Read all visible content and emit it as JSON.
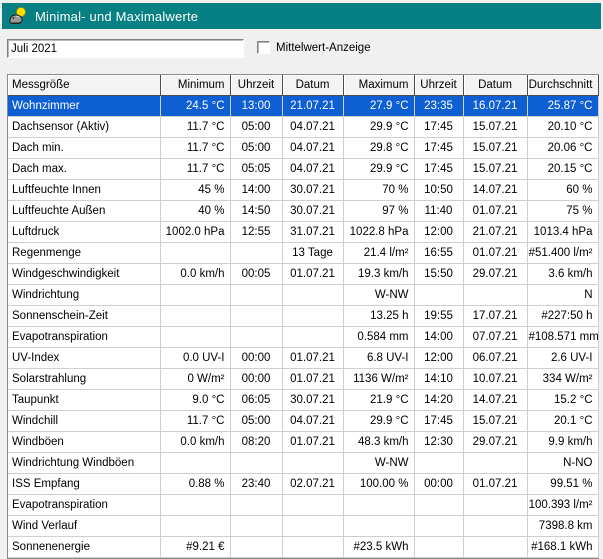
{
  "window": {
    "title": "Minimal- und Maximalwerte",
    "icon": "weather-station-sun-icon"
  },
  "controls": {
    "period_value": "Juli 2021",
    "mittelwert_checkbox_label": "Mittelwert-Anzeige",
    "mittelwert_checkbox_checked": false
  },
  "table": {
    "columns": [
      "Messgröße",
      "Minimum",
      "Uhrzeit",
      "Datum",
      "Maximum",
      "Uhrzeit",
      "Datum",
      "Durchschnitt"
    ],
    "selected_row_index": 0,
    "rows": [
      [
        "Wohnzimmer",
        "24.5 °C",
        "13:00",
        "21.07.21",
        "27.9 °C",
        "23:35",
        "16.07.21",
        "25.87 °C"
      ],
      [
        "Dachsensor (Aktiv)",
        "11.7 °C",
        "05:00",
        "04.07.21",
        "29.9 °C",
        "17:45",
        "15.07.21",
        "20.10 °C"
      ],
      [
        "Dach min.",
        "11.7 °C",
        "05:00",
        "04.07.21",
        "29.8 °C",
        "17:45",
        "15.07.21",
        "20.06 °C"
      ],
      [
        "Dach max.",
        "11.7 °C",
        "05:05",
        "04.07.21",
        "29.9 °C",
        "17:45",
        "15.07.21",
        "20.15 °C"
      ],
      [
        "Luftfeuchte Innen",
        "45 %",
        "14:00",
        "30.07.21",
        "70 %",
        "10:50",
        "14.07.21",
        "60 %"
      ],
      [
        "Luftfeuchte Außen",
        "40 %",
        "14:50",
        "30.07.21",
        "97 %",
        "11:40",
        "01.07.21",
        "75 %"
      ],
      [
        "Luftdruck",
        "1002.0 hPa",
        "12:55",
        "31.07.21",
        "1022.8 hPa",
        "12:00",
        "21.07.21",
        "1013.4 hPa"
      ],
      [
        "Regenmenge",
        "",
        "",
        "13 Tage",
        "21.4 l/m²",
        "16:55",
        "01.07.21",
        "#51.400 l/m²"
      ],
      [
        "Windgeschwindigkeit",
        "0.0 km/h",
        "00:05",
        "01.07.21",
        "19.3 km/h",
        "15:50",
        "29.07.21",
        "3.6 km/h"
      ],
      [
        "Windrichtung",
        "",
        "",
        "",
        "W-NW",
        "",
        "",
        "N"
      ],
      [
        "Sonnenschein-Zeit",
        "",
        "",
        "",
        "13.25 h",
        "19:55",
        "17.07.21",
        "#227:50 h"
      ],
      [
        "Evapotranspiration",
        "",
        "",
        "",
        "0.584 mm",
        "14:00",
        "07.07.21",
        "#108.571 mm"
      ],
      [
        "UV-Index",
        "0.0 UV-I",
        "00:00",
        "01.07.21",
        "6.8 UV-I",
        "12:00",
        "06.07.21",
        "2.6 UV-I"
      ],
      [
        "Solarstrahlung",
        "0 W/m²",
        "00:00",
        "01.07.21",
        "1136 W/m²",
        "14:10",
        "10.07.21",
        "334 W/m²"
      ],
      [
        "Taupunkt",
        "9.0 °C",
        "06:05",
        "30.07.21",
        "21.9 °C",
        "14:20",
        "14.07.21",
        "15.2 °C"
      ],
      [
        "Windchill",
        "11.7 °C",
        "05:00",
        "04.07.21",
        "29.9 °C",
        "17:45",
        "15.07.21",
        "20.1 °C"
      ],
      [
        "Windböen",
        "0.0 km/h",
        "08:20",
        "01.07.21",
        "48.3 km/h",
        "12:30",
        "29.07.21",
        "9.9 km/h"
      ],
      [
        "Windrichtung Windböen",
        "",
        "",
        "",
        "W-NW",
        "",
        "",
        "N-NO"
      ],
      [
        "ISS Empfang",
        "0.88 %",
        "23:40",
        "02.07.21",
        "100.00 %",
        "00:00",
        "01.07.21",
        "99.51 %"
      ],
      [
        "Evapotranspiration",
        "",
        "",
        "",
        "",
        "",
        "",
        "100.393 l/m²"
      ],
      [
        "Wind Verlauf",
        "",
        "",
        "",
        "",
        "",
        "",
        "7398.8 km"
      ],
      [
        "Sonnenenergie",
        "#9.21 €",
        "",
        "",
        "#23.5 kWh",
        "",
        "",
        "#168.1 kWh"
      ]
    ]
  },
  "colors": {
    "titlebar": "#078084",
    "selection": "#0d5fd3",
    "selection_text": "#ffffff"
  }
}
